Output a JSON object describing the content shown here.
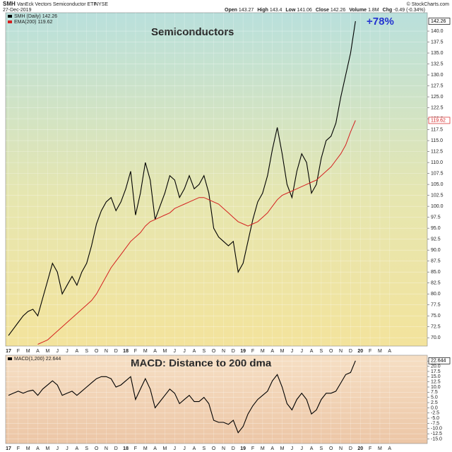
{
  "chart_data": [
    {
      "type": "line",
      "symbol": "SMH",
      "title": "VanEck Vectors Semiconductor ETF",
      "exchange": "NYSE",
      "date": "27-Dec-2019",
      "source": "© StockCharts.com",
      "quote": [
        {
          "label": "Open",
          "value": 143.27
        },
        {
          "label": "High",
          "value": 143.4
        },
        {
          "label": "Low",
          "value": 141.06
        },
        {
          "label": "Close",
          "value": 142.26
        },
        {
          "label": "Volume",
          "value": 1800000,
          "value_label": "1.8M"
        },
        {
          "label": "Chg",
          "value": -0.49,
          "value_label": "-0.49 (-0.34%)"
        }
      ],
      "annotations": [
        "Semiconductors",
        "+78%"
      ],
      "categories": [
        "17",
        null,
        "F",
        null,
        "M",
        null,
        "A",
        null,
        "M",
        null,
        "J",
        null,
        "J",
        null,
        "A",
        null,
        "S",
        null,
        "O",
        null,
        "N",
        null,
        "D",
        null,
        "18",
        null,
        "F",
        null,
        "M",
        null,
        "A",
        null,
        "M",
        null,
        "J",
        null,
        "J",
        null,
        "A",
        null,
        "S",
        null,
        "O",
        null,
        "N",
        null,
        "D",
        null,
        "19",
        null,
        "F",
        null,
        "M",
        null,
        "A",
        null,
        "M",
        null,
        "J",
        null,
        "J",
        null,
        "A",
        null,
        "S",
        null,
        "O",
        null,
        "N",
        null,
        "D",
        null,
        "20",
        null,
        "F",
        null,
        "M",
        null,
        "A",
        null
      ],
      "series": [
        {
          "name": "SMH (Daily)",
          "color": "#000000",
          "values": [
            70.5,
            72,
            73.5,
            75,
            76,
            76.5,
            75,
            79,
            83,
            87,
            85,
            80,
            82,
            84,
            82,
            85,
            87,
            91,
            96,
            99,
            101,
            102,
            99,
            101,
            104,
            108,
            98,
            103,
            110,
            106,
            97,
            100,
            103,
            107,
            106,
            102,
            104,
            107,
            104,
            105,
            107,
            103,
            95,
            93,
            92,
            91,
            92,
            85,
            87,
            92,
            97,
            101,
            103,
            107,
            113,
            118,
            112,
            105,
            102,
            108,
            112,
            110,
            103,
            105,
            111,
            115,
            116,
            119,
            125,
            130,
            135,
            142.26,
            null,
            null,
            null,
            null,
            null,
            null,
            null,
            null
          ]
        },
        {
          "name": "EMA(200)",
          "color": "#d42020",
          "values": [
            null,
            null,
            null,
            null,
            null,
            null,
            68.5,
            69,
            69.5,
            70.5,
            71.5,
            72.5,
            73.5,
            74.5,
            75.5,
            76.5,
            77.5,
            78.5,
            80,
            82,
            84,
            86,
            87.5,
            89,
            90.5,
            92,
            93,
            94,
            95.5,
            96.5,
            97,
            97.5,
            98,
            98.5,
            99.5,
            100,
            100.5,
            101,
            101.5,
            102,
            102,
            101.5,
            101,
            100.5,
            99.5,
            98.5,
            97.5,
            96.5,
            96,
            95.5,
            96,
            96.5,
            97.5,
            98.5,
            100,
            101.5,
            102.5,
            103,
            103.5,
            104,
            104.5,
            105,
            105.5,
            106,
            107,
            108,
            109,
            110.5,
            112,
            114,
            117,
            119.62,
            null,
            null,
            null,
            null,
            null,
            null,
            null,
            null
          ]
        }
      ],
      "ylim": [
        68.1,
        144.2
      ],
      "yticks": [
        {
          "value": 70,
          "label": "70.0"
        },
        72.5,
        {
          "value": 75,
          "label": "75.0"
        },
        77.5,
        {
          "value": 80,
          "label": "80.0"
        },
        82.5,
        {
          "value": 85,
          "label": "85.0"
        },
        87.5,
        {
          "value": 90,
          "label": "90.0"
        },
        92.5,
        {
          "value": 95,
          "label": "95.0"
        },
        97.5,
        {
          "value": 100,
          "label": "100.0"
        },
        102.5,
        {
          "value": 105,
          "label": "105.0"
        },
        107.5,
        {
          "value": 110,
          "label": "110.0"
        },
        112.5,
        {
          "value": 115,
          "label": "115.0"
        },
        117.5,
        {
          "value": 120,
          "label": "120.0"
        },
        122.5,
        {
          "value": 125,
          "label": "125.0"
        },
        127.5,
        {
          "value": 130,
          "label": "130.0"
        },
        132.5,
        {
          "value": 135,
          "label": "135.0"
        },
        137.5,
        {
          "value": 140,
          "label": "140.0"
        }
      ],
      "grid": true
    },
    {
      "type": "line",
      "annotations": [
        "MACD: Distance to 200 dma"
      ],
      "categories": [
        "17",
        null,
        "F",
        null,
        "M",
        null,
        "A",
        null,
        "M",
        null,
        "J",
        null,
        "J",
        null,
        "A",
        null,
        "S",
        null,
        "O",
        null,
        "N",
        null,
        "D",
        null,
        "18",
        null,
        "F",
        null,
        "M",
        null,
        "A",
        null,
        "M",
        null,
        "J",
        null,
        "J",
        null,
        "A",
        null,
        "S",
        null,
        "O",
        null,
        "N",
        null,
        "D",
        null,
        "19",
        null,
        "F",
        null,
        "M",
        null,
        "A",
        null,
        "M",
        null,
        "J",
        null,
        "J",
        null,
        "A",
        null,
        "S",
        null,
        "O",
        null,
        "N",
        null,
        "D",
        null,
        "20",
        null,
        "F",
        null,
        "M",
        null,
        "A",
        null
      ],
      "series": [
        {
          "name": "MACD(1,200)",
          "color": "#000000",
          "values": [
            6,
            7,
            8,
            7,
            8,
            8.5,
            6,
            9,
            11,
            13,
            11,
            6,
            7,
            8,
            6,
            8,
            10,
            12,
            14,
            15,
            15,
            14,
            10,
            11,
            13,
            15,
            4,
            9,
            14,
            9,
            0,
            3,
            6,
            9,
            7,
            2,
            4,
            6,
            3,
            3,
            5,
            2,
            -6,
            -7,
            -7,
            -8,
            -6,
            -12,
            -9,
            -3,
            1,
            4,
            6,
            8,
            13,
            16,
            10,
            2,
            -1,
            4,
            7,
            4,
            -3,
            -1,
            4,
            7,
            7,
            8,
            12,
            16,
            17,
            22.644,
            null,
            null,
            null,
            null,
            null,
            null,
            null,
            null
          ]
        }
      ],
      "ylim": [
        -17.2,
        25.3
      ],
      "yticks": [
        {
          "value": -15,
          "label": "-15.0"
        },
        -12.5,
        {
          "value": -10,
          "label": "-10.0"
        },
        -7.5,
        {
          "value": -5,
          "label": "-5.0"
        },
        -2.5,
        {
          "value": 0,
          "label": "0.0"
        },
        2.5,
        {
          "value": 5,
          "label": "5.0"
        },
        7.5,
        {
          "value": 10,
          "label": "10.0"
        },
        12.5,
        {
          "value": 15,
          "label": "15.0"
        },
        17.5,
        {
          "value": 20,
          "label": "20.0"
        },
        22.5
      ],
      "grid": true
    }
  ]
}
